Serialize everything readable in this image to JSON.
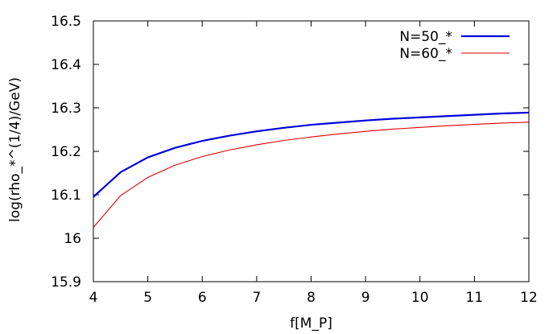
{
  "chart_data": {
    "type": "line",
    "title": "",
    "xlabel": "f[M_P]",
    "ylabel": "log(rho_*^(1/4)/GeV)",
    "xlim": [
      4,
      12
    ],
    "ylim": [
      15.9,
      16.5
    ],
    "xticks": [
      "4",
      "5",
      "6",
      "7",
      "8",
      "9",
      "10",
      "11",
      "12"
    ],
    "yticks": [
      "15.9",
      "16",
      "16.1",
      "16.2",
      "16.3",
      "16.4",
      "16.5"
    ],
    "grid": false,
    "legend_position": "top-right",
    "series": [
      {
        "name": "N=50_*",
        "color": "#0000dd",
        "x": [
          4,
          4.5,
          5,
          5.5,
          6,
          6.5,
          7,
          7.5,
          8,
          8.5,
          9,
          9.5,
          10,
          10.5,
          11,
          11.5,
          12
        ],
        "y": [
          16.095,
          16.152,
          16.186,
          16.208,
          16.224,
          16.236,
          16.246,
          16.254,
          16.261,
          16.266,
          16.271,
          16.275,
          16.278,
          16.281,
          16.284,
          16.287,
          16.289
        ]
      },
      {
        "name": "N=60_*",
        "color": "#dd0000",
        "x": [
          4,
          4.5,
          5,
          5.5,
          6,
          6.5,
          7,
          7.5,
          8,
          8.5,
          9,
          9.5,
          10,
          10.5,
          11,
          11.5,
          12
        ],
        "y": [
          16.025,
          16.098,
          16.14,
          16.168,
          16.188,
          16.203,
          16.215,
          16.225,
          16.233,
          16.24,
          16.246,
          16.251,
          16.255,
          16.259,
          16.262,
          16.265,
          16.267
        ]
      }
    ]
  }
}
